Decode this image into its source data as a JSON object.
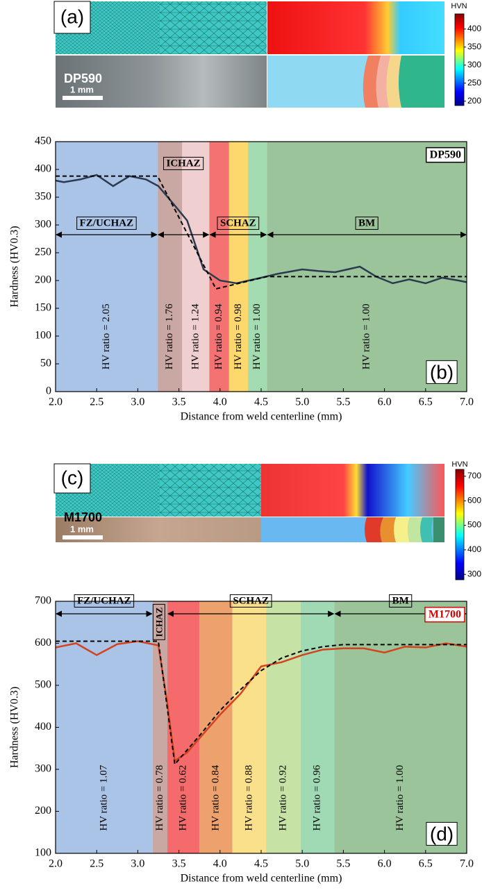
{
  "panels": [
    {
      "label": "(a)",
      "material": "DP590",
      "scale_bar": "1 mm",
      "colorbar": {
        "title": "HVN",
        "lim": [
          188,
          442
        ],
        "ticks": [
          200,
          250,
          300,
          350,
          400
        ]
      }
    },
    {
      "label": "(c)",
      "material": "M1700",
      "scale_bar": "1 mm",
      "colorbar": {
        "title": "HVN",
        "lim": [
          278,
          728
        ],
        "ticks": [
          300,
          400,
          500,
          600,
          700
        ]
      }
    }
  ],
  "chart_data": [
    {
      "type": "line",
      "panel_label": "(b)",
      "material": "DP590",
      "material_color": "#000000",
      "xlabel": "Distance from weld centerline  (mm)",
      "ylabel": "Hardness (HV0.3)",
      "xlim": [
        2,
        7
      ],
      "xticks": [
        {
          "value": 2,
          "label": "2.0"
        },
        {
          "value": 2.5,
          "label": "2.5"
        },
        {
          "value": 3,
          "label": "3.0"
        },
        {
          "value": 3.5,
          "label": "3.5"
        },
        {
          "value": 4,
          "label": "4.0"
        },
        {
          "value": 4.5,
          "label": "4.5"
        },
        {
          "value": 5,
          "label": "5.0"
        },
        {
          "value": 5.5,
          "label": "5.5"
        },
        {
          "value": 6,
          "label": "6.0"
        },
        {
          "value": 6.5,
          "label": "6.5"
        },
        {
          "value": 7,
          "label": "7.0"
        }
      ],
      "ylim": [
        0,
        450
      ],
      "yticks": [
        0,
        50,
        100,
        150,
        200,
        250,
        300,
        350,
        400,
        450
      ],
      "bands": [
        {
          "xrange": [
            2.0,
            3.24
          ],
          "color": "#aac4e8",
          "label": "HV ratio = 2.05"
        },
        {
          "xrange": [
            3.24,
            3.54
          ],
          "color": "#c9a7a2",
          "label": "HV ratio = 1.76"
        },
        {
          "xrange": [
            3.54,
            3.87
          ],
          "color": "#efcfcf",
          "label": "HV ratio = 1.24"
        },
        {
          "xrange": [
            3.87,
            4.11
          ],
          "color": "#f47272",
          "label": "HV ratio = 0.94"
        },
        {
          "xrange": [
            4.11,
            4.34
          ],
          "color": "#fdd86c",
          "label": "HV ratio = 0.98"
        },
        {
          "xrange": [
            4.34,
            4.57
          ],
          "color": "#a4dcb2",
          "label": "HV ratio = 1.00"
        },
        {
          "xrange": [
            4.57,
            7.0
          ],
          "color": "#9cc49b",
          "label": "HV ratio = 1.00"
        }
      ],
      "regions": [
        {
          "label": "FZ/UCHAZ",
          "xrange": [
            2.0,
            3.24
          ]
        },
        {
          "label": "ICHAZ",
          "xrange": [
            3.24,
            3.87
          ]
        },
        {
          "label": "SCHAZ",
          "xrange": [
            3.87,
            4.57
          ]
        },
        {
          "label": "BM",
          "xrange": [
            4.57,
            7.0
          ]
        }
      ],
      "series": [
        {
          "color": "#2b3a4f",
          "x": [
            2.0,
            2.1,
            2.3,
            2.5,
            2.7,
            2.9,
            3.1,
            3.25,
            3.45,
            3.6,
            3.8,
            4.0,
            4.2,
            4.5,
            4.7,
            5.0,
            5.2,
            5.4,
            5.7,
            5.9,
            6.1,
            6.3,
            6.5,
            6.7,
            6.9,
            7.0
          ],
          "values": [
            380,
            377,
            382,
            390,
            370,
            388,
            382,
            370,
            335,
            308,
            220,
            200,
            195,
            205,
            212,
            220,
            217,
            215,
            225,
            207,
            195,
            202,
            195,
            205,
            200,
            197
          ]
        },
        {
          "color": "#000000",
          "dash": true,
          "x": [
            2.0,
            3.24,
            3.95,
            4.57,
            7.0
          ],
          "values": [
            388,
            388,
            185,
            207,
            207
          ]
        }
      ]
    },
    {
      "type": "line",
      "panel_label": "(d)",
      "material": "M1700",
      "material_color": "#e00000",
      "xlabel": "Distance from weld centerline  (mm)",
      "ylabel": "Hardness (HV0.3)",
      "xlim": [
        2,
        7
      ],
      "xticks": [
        {
          "value": 2,
          "label": "2.0"
        },
        {
          "value": 2.5,
          "label": "2.5"
        },
        {
          "value": 3,
          "label": "3.0"
        },
        {
          "value": 3.5,
          "label": "3.5"
        },
        {
          "value": 4,
          "label": "4.0"
        },
        {
          "value": 4.5,
          "label": "4.5"
        },
        {
          "value": 5,
          "label": "5.0"
        },
        {
          "value": 5.5,
          "label": "5.5"
        },
        {
          "value": 6,
          "label": "6.0"
        },
        {
          "value": 6.5,
          "label": "6.5"
        },
        {
          "value": 7,
          "label": "7.0"
        }
      ],
      "ylim": [
        100,
        700
      ],
      "yticks": [
        100,
        200,
        300,
        400,
        500,
        600,
        700
      ],
      "bands": [
        {
          "xrange": [
            2.0,
            3.18
          ],
          "color": "#aac4e8",
          "label": "HV ratio = 1.07"
        },
        {
          "xrange": [
            3.18,
            3.36
          ],
          "color": "#c9a7a2",
          "label": "HV ratio = 0.78"
        },
        {
          "xrange": [
            3.36,
            3.75
          ],
          "color": "#f56a6a",
          "label": "HV ratio = 0.62"
        },
        {
          "xrange": [
            3.75,
            4.15
          ],
          "color": "#eda16c",
          "label": "HV ratio = 0.84"
        },
        {
          "xrange": [
            4.15,
            4.56
          ],
          "color": "#fbe08c",
          "label": "HV ratio = 0.88"
        },
        {
          "xrange": [
            4.56,
            4.98
          ],
          "color": "#c6e2a4",
          "label": "HV ratio = 0.92"
        },
        {
          "xrange": [
            4.98,
            5.39
          ],
          "color": "#9fdab5",
          "label": "HV ratio = 0.96"
        },
        {
          "xrange": [
            5.39,
            7.0
          ],
          "color": "#9cc49b",
          "label": "HV ratio = 1.00"
        }
      ],
      "regions": [
        {
          "label": "FZ/UCHAZ",
          "xrange": [
            2.0,
            3.18
          ]
        },
        {
          "label": "ICHAZ",
          "xrange": [
            3.18,
            3.36
          ]
        },
        {
          "label": "SCHAZ",
          "xrange": [
            3.36,
            5.39
          ]
        },
        {
          "label": "BM",
          "xrange": [
            5.39,
            7.0
          ]
        }
      ],
      "series": [
        {
          "color": "#d4421e",
          "x": [
            2.0,
            2.25,
            2.5,
            2.75,
            3.0,
            3.25,
            3.35,
            3.45,
            3.6,
            4.0,
            4.25,
            4.5,
            4.75,
            5.0,
            5.25,
            5.5,
            5.75,
            6.0,
            6.25,
            6.5,
            6.75,
            7.0
          ],
          "values": [
            590,
            600,
            572,
            598,
            605,
            595,
            470,
            320,
            340,
            430,
            480,
            545,
            555,
            572,
            585,
            588,
            588,
            578,
            592,
            590,
            600,
            592
          ]
        },
        {
          "color": "#000000",
          "dash": true,
          "x": [
            2.0,
            3.25,
            3.45,
            3.75,
            4.0,
            4.25,
            4.5,
            4.75,
            5.0,
            5.25,
            5.5,
            7.0
          ],
          "values": [
            605,
            605,
            312,
            380,
            440,
            490,
            535,
            565,
            582,
            592,
            597,
            597
          ]
        }
      ]
    }
  ]
}
